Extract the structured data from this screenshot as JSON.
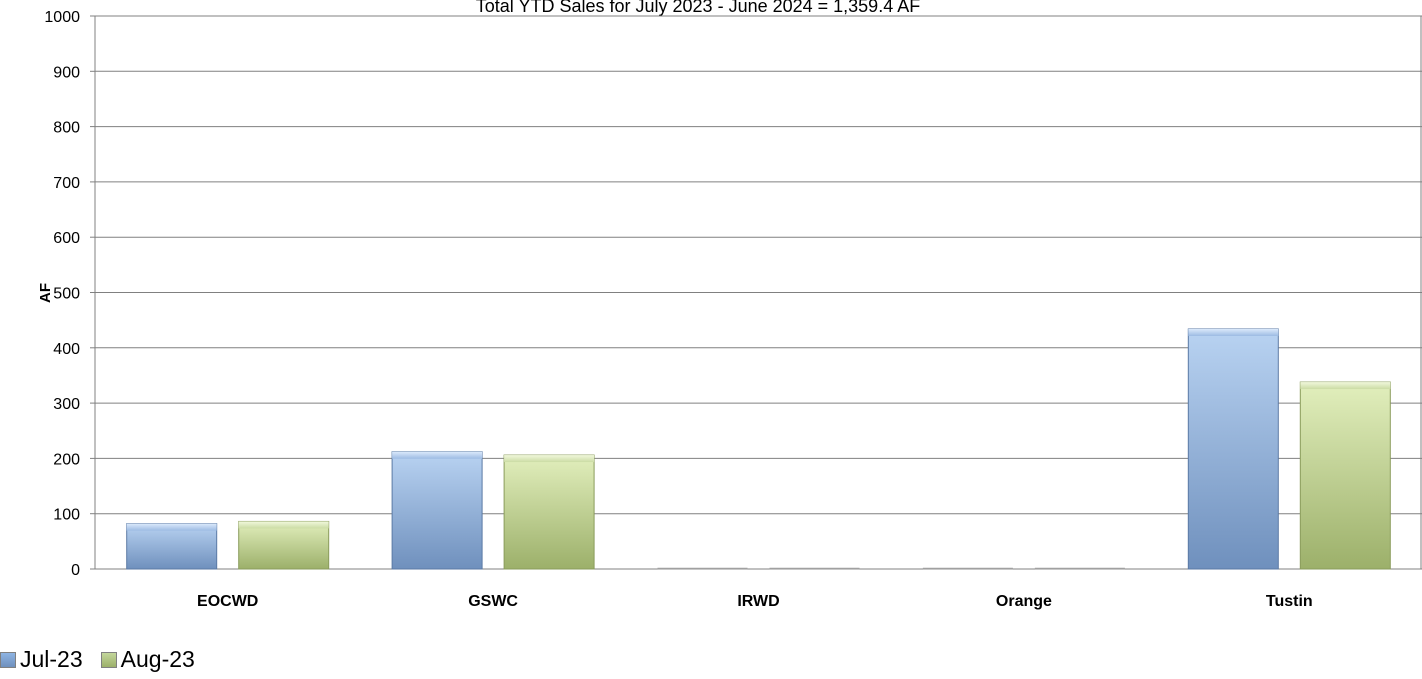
{
  "chart_data": {
    "type": "bar",
    "title": "Total YTD Sales for July 2023 - June 2024 = 1,359.4 AF",
    "xlabel": "",
    "ylabel": "AF",
    "ylim": [
      0,
      1000
    ],
    "yticks": [
      "0",
      "100",
      "200",
      "300",
      "400",
      "500",
      "600",
      "700",
      "800",
      "900",
      "1000"
    ],
    "grid": true,
    "legend_position": "bottom-left",
    "categories": [
      "EOCWD",
      "GSWC",
      "IRWD",
      "Orange",
      "Tustin"
    ],
    "series": [
      {
        "name": "Jul-23",
        "values": [
          82,
          212,
          0,
          0,
          434
        ],
        "color": "#8eb4e3"
      },
      {
        "name": "Aug-23",
        "values": [
          86,
          206,
          0,
          0,
          338
        ],
        "color": "#c3d69b"
      }
    ]
  }
}
